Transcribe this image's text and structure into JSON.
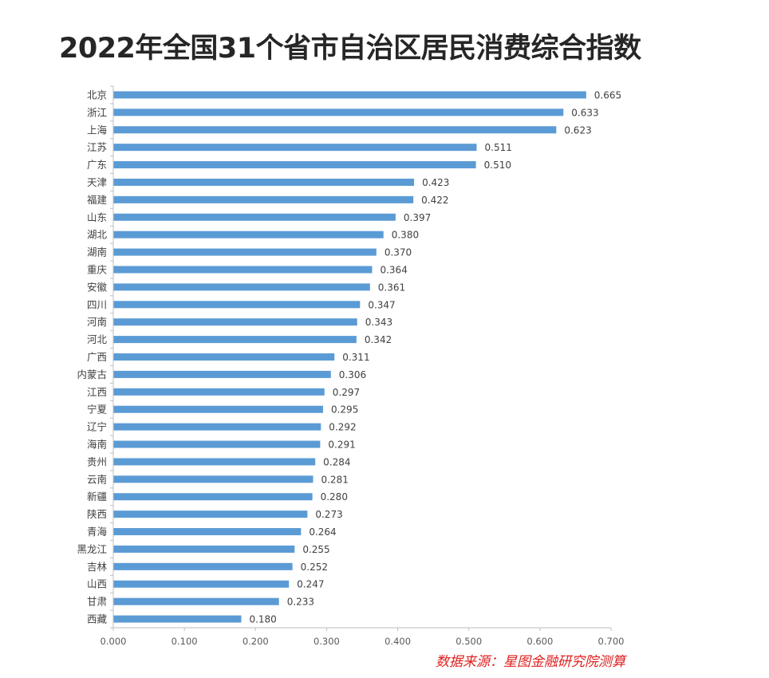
{
  "title": "2022年全国31个省市自治区居民消费综合指数",
  "source": "数据来源：星图金融研究院测算",
  "colors": {
    "bar": "#5b9bd5",
    "axis": "#bfbfbf",
    "source": "#e02020"
  },
  "chart_data": {
    "type": "bar",
    "orientation": "horizontal",
    "title": "2022年全国31个省市自治区居民消费综合指数",
    "categories": [
      "北京",
      "浙江",
      "上海",
      "江苏",
      "广东",
      "天津",
      "福建",
      "山东",
      "湖北",
      "湖南",
      "重庆",
      "安徽",
      "四川",
      "河南",
      "河北",
      "广西",
      "内蒙古",
      "江西",
      "宁夏",
      "辽宁",
      "海南",
      "贵州",
      "云南",
      "新疆",
      "陕西",
      "青海",
      "黑龙江",
      "吉林",
      "山西",
      "甘肃",
      "西藏"
    ],
    "values": [
      0.665,
      0.633,
      0.623,
      0.511,
      0.51,
      0.423,
      0.422,
      0.397,
      0.38,
      0.37,
      0.364,
      0.361,
      0.347,
      0.343,
      0.342,
      0.311,
      0.306,
      0.297,
      0.295,
      0.292,
      0.291,
      0.284,
      0.281,
      0.28,
      0.273,
      0.264,
      0.255,
      0.252,
      0.247,
      0.233,
      0.18
    ],
    "value_labels": [
      "0.665",
      "0.633",
      "0.623",
      "0.511",
      "0.510",
      "0.423",
      "0.422",
      "0.397",
      "0.380",
      "0.370",
      "0.364",
      "0.361",
      "0.347",
      "0.343",
      "0.342",
      "0.311",
      "0.306",
      "0.297",
      "0.295",
      "0.292",
      "0.291",
      "0.284",
      "0.281",
      "0.280",
      "0.273",
      "0.264",
      "0.255",
      "0.252",
      "0.247",
      "0.233",
      "0.180"
    ],
    "x_ticks": [
      "0.000",
      "0.100",
      "0.200",
      "0.300",
      "0.400",
      "0.500",
      "0.600",
      "0.700"
    ],
    "xlim": [
      0,
      0.7
    ],
    "xlabel": "",
    "ylabel": "",
    "grid": false,
    "legend": false
  }
}
